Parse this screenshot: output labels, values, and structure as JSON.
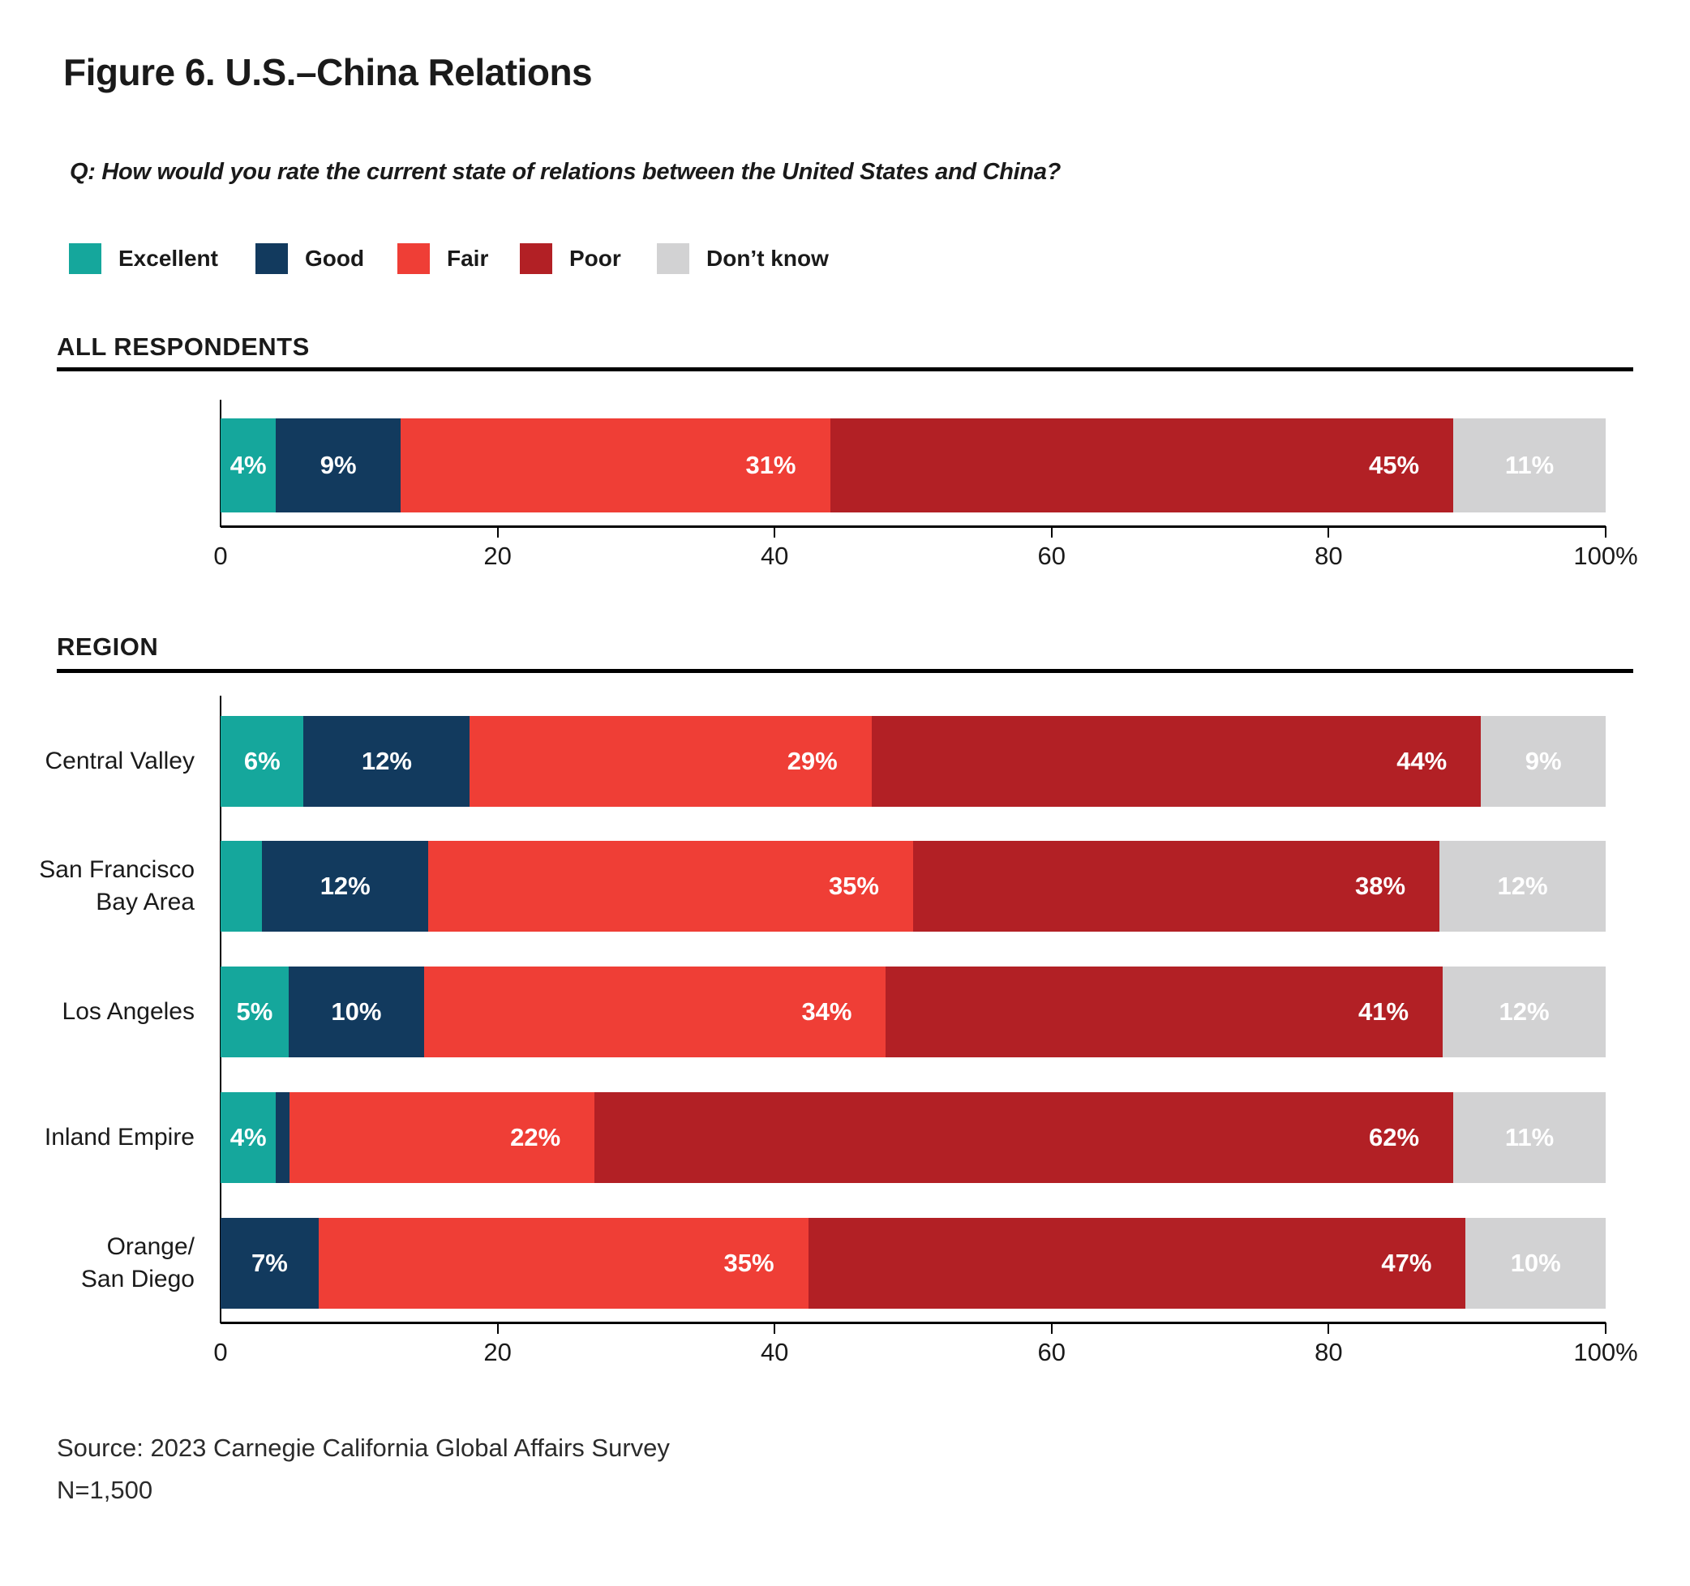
{
  "figure": {
    "title": "Figure 6. U.S.–China Relations",
    "question": "Q: How would you rate the current state of relations between the United States and China?",
    "source_line1": "Source: 2023 Carnegie California Global Affairs Survey",
    "source_line2": "N=1,500"
  },
  "colors": {
    "excellent": "#15A79C",
    "good": "#123A5E",
    "fair": "#EF3E36",
    "poor": "#B22025",
    "dont_know": "#D2D2D3",
    "text": "#1A1A1A"
  },
  "legend": [
    {
      "label": "Excellent",
      "color_key": "excellent"
    },
    {
      "label": "Good",
      "color_key": "good"
    },
    {
      "label": "Fair",
      "color_key": "fair"
    },
    {
      "label": "Poor",
      "color_key": "poor"
    },
    {
      "label": "Don’t know",
      "color_key": "dont_know"
    }
  ],
  "chart_data": {
    "type": "bar",
    "stacked": true,
    "orientation": "horizontal",
    "series": [
      "Excellent",
      "Good",
      "Fair",
      "Poor",
      "Don't know"
    ],
    "series_color_keys": [
      "excellent",
      "good",
      "fair",
      "poor",
      "dont_know"
    ],
    "xlim": [
      0,
      100
    ],
    "tick_values": [
      0,
      20,
      40,
      60,
      80,
      100
    ],
    "tick_labels": [
      "0",
      "20",
      "40",
      "60",
      "80",
      "100%"
    ],
    "groups": [
      {
        "header": "ALL RESPONDENTS",
        "rows": [
          {
            "label_lines": [],
            "values": [
              4,
              9,
              31,
              45,
              11
            ],
            "segment_labels": [
              "4%",
              "9%",
              "31%",
              "45%",
              "11%"
            ]
          }
        ]
      },
      {
        "header": "REGION",
        "rows": [
          {
            "label_lines": [
              "Central Valley"
            ],
            "values": [
              6,
              12,
              29,
              44,
              9
            ],
            "segment_labels": [
              "6%",
              "12%",
              "29%",
              "44%",
              "9%"
            ]
          },
          {
            "label_lines": [
              "San Francisco",
              "Bay Area"
            ],
            "values": [
              3,
              12,
              35,
              38,
              12
            ],
            "segment_labels": [
              "",
              "12%",
              "35%",
              "38%",
              "12%"
            ]
          },
          {
            "label_lines": [
              "Los Angeles"
            ],
            "values": [
              5,
              10,
              34,
              41,
              12
            ],
            "segment_labels": [
              "5%",
              "10%",
              "34%",
              "41%",
              "12%"
            ]
          },
          {
            "label_lines": [
              "Inland Empire"
            ],
            "values": [
              4,
              1,
              22,
              62,
              11
            ],
            "segment_labels": [
              "4%",
              "",
              "22%",
              "62%",
              "11%"
            ]
          },
          {
            "label_lines": [
              "Orange/",
              "San Diego"
            ],
            "values": [
              0,
              7,
              35,
              47,
              10
            ],
            "segment_labels": [
              "",
              "7%",
              "35%",
              "47%",
              "10%"
            ]
          }
        ]
      }
    ]
  }
}
